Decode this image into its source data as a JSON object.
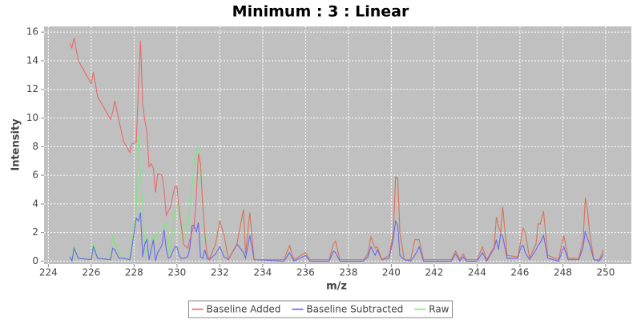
{
  "chart_data": {
    "type": "line",
    "title": "Minimum : 3 : Linear",
    "x_label": "m/z",
    "y_label": "Intensity",
    "x": [
      225.0,
      225.1,
      225.2,
      225.4,
      226.0,
      226.1,
      226.3,
      226.9,
      227.0,
      227.1,
      227.3,
      227.5,
      227.8,
      227.9,
      228.1,
      228.2,
      228.3,
      228.4,
      228.5,
      228.6,
      228.7,
      228.8,
      228.9,
      229.0,
      229.1,
      229.3,
      229.4,
      229.5,
      229.6,
      229.7,
      229.9,
      230.0,
      230.1,
      230.2,
      230.3,
      230.5,
      230.6,
      230.7,
      230.8,
      230.9,
      231.0,
      231.1,
      231.2,
      231.3,
      231.4,
      231.5,
      231.8,
      232.0,
      232.2,
      232.4,
      232.8,
      233.1,
      233.2,
      233.4,
      233.6,
      235.0,
      235.25,
      235.45,
      236.0,
      236.2,
      237.1,
      237.3,
      237.4,
      237.6,
      238.7,
      238.9,
      239.05,
      239.25,
      239.35,
      239.55,
      239.9,
      240.1,
      240.2,
      240.3,
      240.4,
      240.6,
      240.9,
      241.1,
      241.3,
      241.5,
      242.8,
      243.0,
      243.2,
      243.35,
      243.5,
      244.0,
      244.25,
      244.45,
      244.8,
      244.9,
      245.0,
      245.1,
      245.2,
      245.4,
      245.9,
      246.05,
      246.15,
      246.25,
      246.45,
      246.75,
      246.85,
      246.95,
      247.1,
      247.3,
      247.8,
      248.05,
      248.25,
      248.75,
      248.95,
      249.05,
      249.15,
      249.25,
      249.45,
      249.7,
      249.9
    ],
    "series": [
      {
        "name": "Raw",
        "color": "#70f070",
        "values": [
          0.3,
          0.2,
          1.0,
          0.2,
          0.1,
          1.2,
          0.2,
          0.1,
          1.8,
          1.2,
          0.6,
          0.2,
          0.1,
          1.5,
          3.5,
          8.8,
          6.0,
          4.0,
          1.0,
          0.5,
          0.3,
          1.0,
          1.8,
          1.5,
          2.0,
          2.3,
          2.5,
          2.7,
          1.2,
          0.5,
          3.5,
          3.8,
          4.0,
          3.0,
          1.5,
          2.0,
          3.8,
          5.0,
          7.0,
          7.5,
          8.0,
          6.0,
          4.0,
          1.5,
          0.3,
          0.1,
          1.2,
          2.8,
          1.8,
          0.1,
          1.2,
          3.6,
          0.5,
          3.4,
          0.1,
          0.1,
          1.1,
          0.1,
          0.6,
          0.1,
          0.1,
          1.2,
          1.4,
          0.1,
          0.1,
          0.5,
          1.7,
          0.9,
          1.0,
          0.1,
          0.4,
          2.0,
          5.9,
          5.8,
          2.0,
          0.1,
          0.1,
          1.5,
          1.5,
          0.1,
          0.1,
          0.7,
          0.1,
          0.5,
          0.1,
          0.1,
          1.0,
          0.1,
          1.0,
          3.1,
          2.4,
          2.0,
          3.8,
          0.4,
          0.3,
          1.5,
          2.3,
          2.0,
          0.2,
          1.2,
          2.6,
          2.6,
          3.5,
          0.4,
          0.1,
          1.8,
          0.2,
          0.2,
          1.5,
          4.4,
          3.6,
          2.0,
          0.1,
          0.1,
          0.8
        ]
      },
      {
        "name": "Baseline Subtracted",
        "color": "#5a5af0",
        "values": [
          0.3,
          0.0,
          0.9,
          0.2,
          0.1,
          1.0,
          0.2,
          0.1,
          0.9,
          0.8,
          0.2,
          0.2,
          0.1,
          1.0,
          3.0,
          2.8,
          3.4,
          0.3,
          1.2,
          1.5,
          0.1,
          0.8,
          1.5,
          0.0,
          0.6,
          1.1,
          2.2,
          0.8,
          0.2,
          0.3,
          1.0,
          1.0,
          0.4,
          0.2,
          0.2,
          0.3,
          0.9,
          2.5,
          2.5,
          2.0,
          2.7,
          0.3,
          0.2,
          0.8,
          0.2,
          0.1,
          0.5,
          1.0,
          0.3,
          0.1,
          1.2,
          0.6,
          0.2,
          1.8,
          0.1,
          0.0,
          0.6,
          0.0,
          0.4,
          0.0,
          0.0,
          0.7,
          0.6,
          0.0,
          0.0,
          0.3,
          1.0,
          0.4,
          0.8,
          0.1,
          0.2,
          1.6,
          2.8,
          2.5,
          0.4,
          0.1,
          0.0,
          0.4,
          1.0,
          0.0,
          0.0,
          0.5,
          0.0,
          0.3,
          0.0,
          0.0,
          0.6,
          0.0,
          0.9,
          1.5,
          0.8,
          1.9,
          1.7,
          0.2,
          0.2,
          1.0,
          1.1,
          0.6,
          0.1,
          0.8,
          1.1,
          1.3,
          1.8,
          0.2,
          0.0,
          1.0,
          0.1,
          0.1,
          1.0,
          2.1,
          1.6,
          1.2,
          0.1,
          0.0,
          0.5
        ]
      },
      {
        "name": "Baseline Added",
        "color": "#f05a5a",
        "values": [
          15.2,
          14.9,
          15.6,
          14.0,
          12.4,
          13.2,
          11.5,
          9.9,
          10.4,
          11.2,
          9.8,
          8.4,
          7.6,
          8.2,
          8.3,
          12.0,
          15.4,
          11.0,
          9.8,
          9.0,
          6.6,
          6.8,
          6.5,
          4.8,
          6.1,
          6.0,
          5.0,
          3.2,
          3.5,
          3.8,
          5.2,
          5.2,
          3.6,
          2.5,
          1.2,
          0.9,
          1.5,
          2.0,
          2.5,
          4.5,
          7.5,
          6.8,
          4.0,
          2.0,
          0.5,
          0.1,
          1.2,
          2.8,
          1.8,
          0.1,
          1.2,
          3.6,
          0.5,
          3.4,
          0.1,
          0.1,
          1.1,
          0.1,
          0.6,
          0.1,
          0.1,
          1.2,
          1.4,
          0.1,
          0.1,
          0.5,
          1.7,
          0.9,
          1.0,
          0.1,
          0.4,
          2.0,
          5.9,
          5.8,
          2.0,
          0.1,
          0.1,
          1.5,
          1.5,
          0.1,
          0.1,
          0.7,
          0.1,
          0.5,
          0.1,
          0.1,
          1.0,
          0.1,
          1.0,
          3.1,
          2.4,
          2.0,
          3.8,
          0.4,
          0.3,
          1.5,
          2.3,
          2.0,
          0.2,
          1.2,
          2.6,
          2.6,
          3.5,
          0.4,
          0.1,
          1.8,
          0.2,
          0.2,
          1.5,
          4.4,
          3.6,
          2.0,
          0.1,
          0.1,
          0.8
        ]
      }
    ],
    "legend_order": [
      "Baseline Added",
      "Baseline Subtracted",
      "Raw"
    ],
    "xlim": [
      223.8,
      251.2
    ],
    "ylim": [
      -0.2,
      16.4
    ],
    "xticks": [
      224,
      226,
      228,
      230,
      232,
      234,
      236,
      238,
      240,
      242,
      244,
      246,
      248,
      250
    ],
    "yticks": [
      0,
      2,
      4,
      6,
      8,
      10,
      12,
      14,
      16
    ],
    "grid": true,
    "background": "#c0c0c0",
    "legend": "bottom"
  }
}
